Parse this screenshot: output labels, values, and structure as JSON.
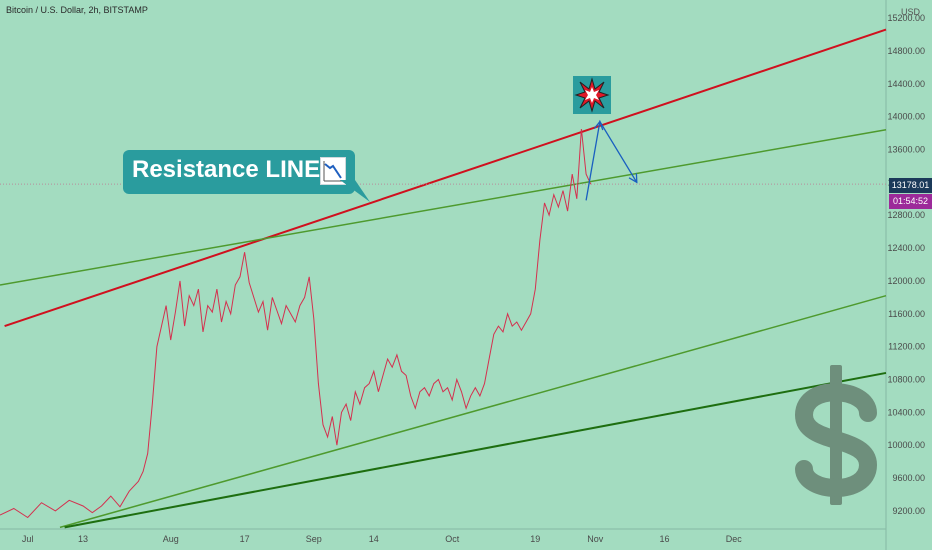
{
  "header": {
    "title": "Bitcoin / U.S. Dollar, 2h, BITSTAMP",
    "currency": "USD"
  },
  "annotations": {
    "resistance_label": "Resistance LINE",
    "chart_icon": "chart-decreasing-icon",
    "explosion_icon": "explosion-icon",
    "dollar_icon": "dollar-sign-icon"
  },
  "price_tag": "13178.01",
  "countdown_tag": "01:54:52",
  "chart_data": {
    "type": "line",
    "title": "Bitcoin / U.S. Dollar, 2h, BITSTAMP",
    "ylabel": "USD",
    "ylim": [
      8980,
      15420
    ],
    "yticks": [
      9200,
      9600,
      10000,
      10400,
      10800,
      11200,
      11600,
      12000,
      12400,
      12800,
      13200,
      13600,
      14000,
      14400,
      14800,
      15200
    ],
    "ytick_labels": [
      "9200.00",
      "9600.00",
      "10000.00",
      "10400.00",
      "10800.00",
      "11200.00",
      "11600.00",
      "12000.00",
      "12400.00",
      "12800.00",
      "13200.00",
      "13600.00",
      "14000.00",
      "14400.00",
      "14800.00",
      "15200.00"
    ],
    "xticks": [
      {
        "label": "Jul",
        "day": 0
      },
      {
        "label": "13",
        "day": 12
      },
      {
        "label": "Aug",
        "day": 31
      },
      {
        "label": "17",
        "day": 47
      },
      {
        "label": "Sep",
        "day": 62
      },
      {
        "label": "14",
        "day": 75
      },
      {
        "label": "Oct",
        "day": 92
      },
      {
        "label": "19",
        "day": 110
      },
      {
        "label": "Nov",
        "day": 123
      },
      {
        "label": "16",
        "day": 138
      },
      {
        "label": "Dec",
        "day": 153
      }
    ],
    "xlim_days": [
      -6,
      186
    ],
    "current_price": 13178.01,
    "series": [
      {
        "values": [
          [
            -6,
            9150
          ],
          [
            -3,
            9230
          ],
          [
            0,
            9120
          ],
          [
            3,
            9300
          ],
          [
            6,
            9200
          ],
          [
            9,
            9330
          ],
          [
            12,
            9260
          ],
          [
            14,
            9180
          ],
          [
            16,
            9260
          ],
          [
            18,
            9380
          ],
          [
            20,
            9250
          ],
          [
            22,
            9440
          ],
          [
            24,
            9560
          ],
          [
            25,
            9680
          ],
          [
            26,
            9900
          ],
          [
            27,
            10500
          ],
          [
            28,
            11200
          ],
          [
            29,
            11450
          ],
          [
            30,
            11700
          ],
          [
            31,
            11280
          ],
          [
            32,
            11620
          ],
          [
            33,
            12000
          ],
          [
            34,
            11450
          ],
          [
            35,
            11820
          ],
          [
            36,
            11700
          ],
          [
            37,
            11900
          ],
          [
            38,
            11380
          ],
          [
            39,
            11700
          ],
          [
            40,
            11620
          ],
          [
            41,
            11900
          ],
          [
            42,
            11500
          ],
          [
            43,
            11750
          ],
          [
            44,
            11600
          ],
          [
            45,
            11950
          ],
          [
            46,
            12050
          ],
          [
            47,
            12350
          ],
          [
            48,
            11980
          ],
          [
            49,
            11800
          ],
          [
            50,
            11620
          ],
          [
            51,
            11750
          ],
          [
            52,
            11400
          ],
          [
            53,
            11800
          ],
          [
            54,
            11640
          ],
          [
            55,
            11480
          ],
          [
            56,
            11700
          ],
          [
            57,
            11600
          ],
          [
            58,
            11500
          ],
          [
            59,
            11700
          ],
          [
            60,
            11800
          ],
          [
            61,
            12050
          ],
          [
            62,
            11540
          ],
          [
            63,
            10750
          ],
          [
            64,
            10250
          ],
          [
            65,
            10100
          ],
          [
            66,
            10350
          ],
          [
            67,
            10000
          ],
          [
            68,
            10400
          ],
          [
            69,
            10500
          ],
          [
            70,
            10300
          ],
          [
            71,
            10650
          ],
          [
            72,
            10500
          ],
          [
            73,
            10700
          ],
          [
            74,
            10750
          ],
          [
            75,
            10900
          ],
          [
            76,
            10650
          ],
          [
            77,
            10850
          ],
          [
            78,
            11050
          ],
          [
            79,
            10950
          ],
          [
            80,
            11100
          ],
          [
            81,
            10900
          ],
          [
            82,
            10850
          ],
          [
            83,
            10600
          ],
          [
            84,
            10450
          ],
          [
            85,
            10650
          ],
          [
            86,
            10700
          ],
          [
            87,
            10600
          ],
          [
            88,
            10750
          ],
          [
            89,
            10800
          ],
          [
            90,
            10650
          ],
          [
            91,
            10700
          ],
          [
            92,
            10550
          ],
          [
            93,
            10800
          ],
          [
            94,
            10650
          ],
          [
            95,
            10450
          ],
          [
            96,
            10600
          ],
          [
            97,
            10700
          ],
          [
            98,
            10600
          ],
          [
            99,
            10750
          ],
          [
            100,
            11050
          ],
          [
            101,
            11350
          ],
          [
            102,
            11450
          ],
          [
            103,
            11380
          ],
          [
            104,
            11600
          ],
          [
            105,
            11450
          ],
          [
            106,
            11500
          ],
          [
            107,
            11400
          ],
          [
            108,
            11500
          ],
          [
            109,
            11600
          ],
          [
            110,
            11900
          ],
          [
            111,
            12500
          ],
          [
            112,
            12950
          ],
          [
            113,
            12800
          ],
          [
            114,
            13050
          ],
          [
            115,
            12900
          ],
          [
            116,
            13100
          ],
          [
            117,
            12850
          ],
          [
            118,
            13300
          ],
          [
            119,
            13000
          ],
          [
            120,
            13850
          ],
          [
            121,
            13300
          ],
          [
            122,
            13178
          ]
        ]
      }
    ],
    "trendlines": [
      {
        "name": "resistance",
        "color": "#d0101e",
        "from": [
          -5,
          11450
        ],
        "to": [
          186,
          15060
        ]
      },
      {
        "name": "upper-channel",
        "color": "#4e9a2e",
        "from": [
          -6,
          11950
        ],
        "to": [
          186,
          13840
        ]
      },
      {
        "name": "lower-channel",
        "color": "#4e9a2e",
        "from": [
          7,
          9000
        ],
        "to": [
          186,
          11820
        ]
      },
      {
        "name": "support",
        "color": "#1e6e10",
        "from": [
          8,
          9000
        ],
        "to": [
          186,
          10880
        ]
      }
    ],
    "projection": {
      "color": "#1a5fc0",
      "points": [
        [
          121,
          12980
        ],
        [
          124,
          13940
        ],
        [
          132,
          13200
        ]
      ]
    }
  }
}
